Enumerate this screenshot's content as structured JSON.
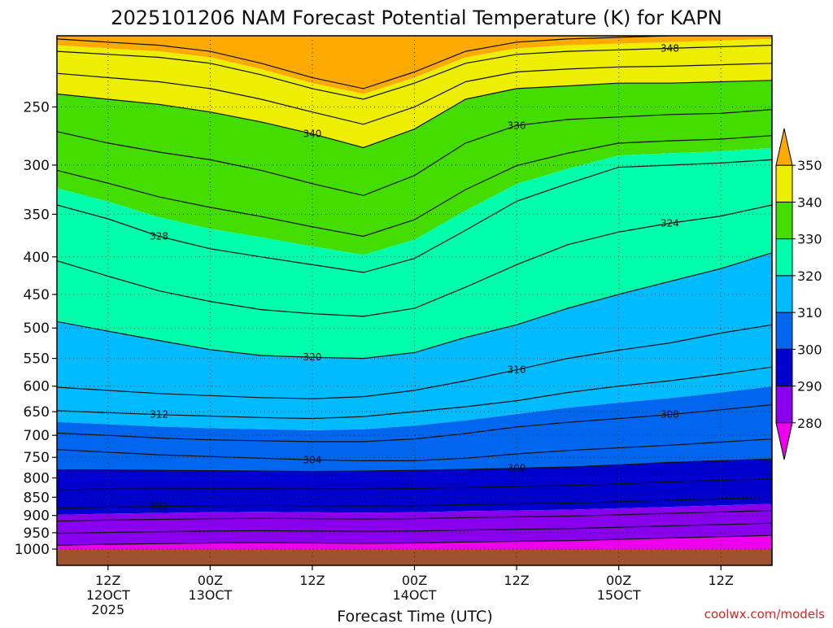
{
  "chart_data": {
    "type": "contour",
    "title": "2025101206 NAM Forecast Potential Temperature (K) for KAPN",
    "xlabel": "Forecast Time (UTC)",
    "ylabel": "",
    "credit": "coolwx.com/models",
    "y_axis": {
      "scale": "pressure (inverted, approx. log)",
      "ticks": [
        250,
        300,
        350,
        400,
        450,
        500,
        550,
        600,
        650,
        700,
        750,
        800,
        850,
        900,
        950,
        1000
      ],
      "range": [
        1000,
        200
      ]
    },
    "x_axis": {
      "range": [
        "2025-10-12 06Z",
        "2025-10-15 18Z"
      ],
      "ticks": [
        {
          "hour": 6,
          "lines": [
            "12Z",
            "12OCT",
            "2025"
          ]
        },
        {
          "hour": 18,
          "lines": [
            "00Z",
            "13OCT"
          ]
        },
        {
          "hour": 30,
          "lines": [
            "12Z"
          ]
        },
        {
          "hour": 42,
          "lines": [
            "00Z",
            "14OCT"
          ]
        },
        {
          "hour": 54,
          "lines": [
            "12Z"
          ]
        },
        {
          "hour": 66,
          "lines": [
            "00Z",
            "15OCT"
          ]
        },
        {
          "hour": 78,
          "lines": [
            "12Z"
          ]
        }
      ]
    },
    "colorbar": {
      "levels": [
        280,
        290,
        300,
        310,
        320,
        330,
        340,
        350
      ],
      "colors": [
        "#ee00ee",
        "#8800ee",
        "#0000cc",
        "#0066ee",
        "#00bbff",
        "#00ffaa",
        "#44dd00",
        "#eeee00",
        "#ffaa00"
      ],
      "extend": "both"
    },
    "isentropes": [
      {
        "theta": 292,
        "p": [
          880,
          877,
          875,
          873,
          872,
          873,
          874,
          873,
          870,
          868,
          866,
          862,
          858,
          854,
          850
        ]
      },
      {
        "theta": 300,
        "p": [
          780,
          780,
          781,
          782,
          783,
          784,
          783,
          781,
          779,
          776,
          773,
          768,
          762,
          758,
          754
        ]
      },
      {
        "theta": 304,
        "p": [
          732,
          738,
          744,
          748,
          752,
          756,
          758,
          758,
          752,
          742,
          734,
          728,
          722,
          715,
          708
        ]
      },
      {
        "theta": 308,
        "p": [
          695,
          700,
          706,
          710,
          712,
          714,
          714,
          708,
          696,
          682,
          672,
          664,
          656,
          646,
          636
        ]
      },
      {
        "theta": 312,
        "p": [
          648,
          652,
          656,
          659,
          662,
          664,
          660,
          650,
          640,
          628,
          612,
          600,
          590,
          578,
          565
        ]
      },
      {
        "theta": 316,
        "p": [
          602,
          608,
          614,
          618,
          622,
          624,
          620,
          608,
          590,
          570,
          550,
          536,
          524,
          508,
          495
        ]
      },
      {
        "theta": 320,
        "p": [
          490,
          505,
          520,
          535,
          545,
          548,
          550,
          540,
          515,
          495,
          470,
          450,
          432,
          415,
          395
        ]
      },
      {
        "theta": 324,
        "p": [
          405,
          425,
          445,
          460,
          472,
          478,
          482,
          470,
          440,
          410,
          385,
          370,
          360,
          352,
          340
        ]
      },
      {
        "theta": 328,
        "p": [
          340,
          355,
          375,
          390,
          400,
          410,
          420,
          402,
          368,
          336,
          318,
          302,
          300,
          298,
          295
        ]
      },
      {
        "theta": 336,
        "p": [
          270,
          280,
          288,
          295,
          305,
          318,
          330,
          310,
          280,
          265,
          260,
          258,
          256,
          255,
          252
        ]
      },
      {
        "theta": 340,
        "p": [
          240,
          244,
          248,
          254,
          262,
          272,
          284,
          268,
          244,
          236,
          234,
          232,
          232,
          231,
          230
        ]
      },
      {
        "theta": 348,
        "p": [
          210,
          212,
          214,
          218,
          226,
          236,
          244,
          232,
          218,
          212,
          210,
          209,
          208,
          207,
          206
        ]
      }
    ]
  }
}
